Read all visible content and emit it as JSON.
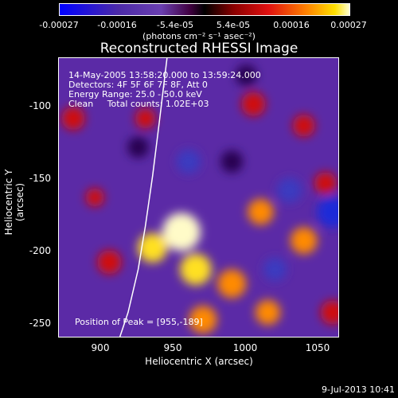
{
  "chart_data": {
    "type": "heatmap",
    "title": "Reconstructed RHESSI Image",
    "xlabel": "Heliocentric X (arcsec)",
    "ylabel": "Heliocentric Y (arcsec)",
    "xlim": [
      870,
      1065
    ],
    "ylim": [
      -263,
      -68
    ],
    "xticks": [
      "900",
      "950",
      "1000",
      "1050"
    ],
    "xtick_values": [
      900,
      950,
      1000,
      1050
    ],
    "yticks": [
      "-100",
      "-150",
      "-200",
      "-250"
    ],
    "ytick_values": [
      -100,
      -150,
      -200,
      -250
    ],
    "colorbar": {
      "ticks": [
        "-0.00027",
        "-0.00016",
        "-5.4e-05",
        "5.4e-05",
        "0.00016",
        "0.00027"
      ],
      "units": "(photons cm⁻² s⁻¹ asec⁻²)",
      "range": [
        -0.00027,
        0.00027
      ]
    },
    "annotations": {
      "time_range": "14-May-2005 13:58:20.000 to 13:59:24.000",
      "detectors": "Detectors: 4F 5F 6F 7F 8F, Att 0",
      "energy_range": "Energy Range: 25.0 - 50.0 keV",
      "clean_counts": "Clean     Total counts: 1.02E+03",
      "peak_position": "Position of Peak = [955,-189]"
    },
    "limb_curve_x": [
      945,
      940,
      935,
      930,
      925,
      918,
      912
    ],
    "limb_curve_y": [
      -68,
      -110,
      -150,
      -185,
      -215,
      -245,
      -263
    ],
    "features": [
      {
        "x": 955,
        "y": -189,
        "value": 0.00027
      },
      {
        "x": 935,
        "y": -200,
        "value": 0.00018
      },
      {
        "x": 965,
        "y": -215,
        "value": 0.0002
      },
      {
        "x": 990,
        "y": -225,
        "value": 0.00017
      },
      {
        "x": 1010,
        "y": -175,
        "value": 0.00014
      },
      {
        "x": 1040,
        "y": -195,
        "value": 0.00015
      },
      {
        "x": 1055,
        "y": -155,
        "value": 0.0001
      },
      {
        "x": 970,
        "y": -250,
        "value": 0.00016
      },
      {
        "x": 905,
        "y": -210,
        "value": 0.00012
      },
      {
        "x": 880,
        "y": -110,
        "value": 0.00011
      },
      {
        "x": 1005,
        "y": -100,
        "value": 0.00012
      },
      {
        "x": 1040,
        "y": -115,
        "value": 0.0001
      },
      {
        "x": 1060,
        "y": -245,
        "value": 0.00012
      },
      {
        "x": 1015,
        "y": -245,
        "value": 0.00013
      },
      {
        "x": 930,
        "y": -110,
        "value": 8e-05
      },
      {
        "x": 895,
        "y": -165,
        "value": 6e-05
      },
      {
        "x": 960,
        "y": -140,
        "value": -0.00012
      },
      {
        "x": 990,
        "y": -140,
        "value": -0.0001
      },
      {
        "x": 1030,
        "y": -160,
        "value": -0.00013
      },
      {
        "x": 925,
        "y": -130,
        "value": -9e-05
      },
      {
        "x": 1060,
        "y": -175,
        "value": -0.0002
      },
      {
        "x": 1000,
        "y": -80,
        "value": -9e-05
      },
      {
        "x": 1020,
        "y": -215,
        "value": -0.00011
      }
    ]
  },
  "footer": {
    "date": "9-Jul-2013 10:41"
  }
}
